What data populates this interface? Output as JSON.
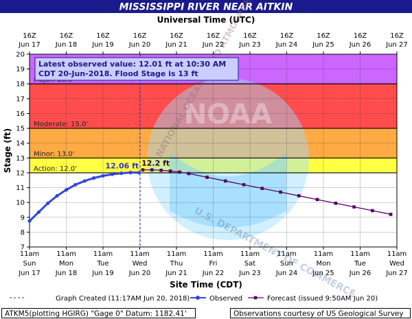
{
  "chart_data": {
    "type": "line",
    "title": "MISSISSIPPI RIVER NEAR AITKIN",
    "top_axis_title": "Universal Time (UTC)",
    "xlabel": "Site Time (CDT)",
    "ylabel": "Stage (ft)",
    "ylim": [
      7,
      20
    ],
    "yticks": [
      7,
      8,
      9,
      10,
      11,
      12,
      13,
      14,
      15,
      16,
      17,
      18,
      19,
      20
    ],
    "x_range": [
      "2018-06-17 11:00",
      "2018-06-27 11:00"
    ],
    "top_ticks": [
      {
        "time": "16Z",
        "date": "Jun 17"
      },
      {
        "time": "16Z",
        "date": "Jun 18"
      },
      {
        "time": "16Z",
        "date": "Jun 19"
      },
      {
        "time": "16Z",
        "date": "Jun 20"
      },
      {
        "time": "16Z",
        "date": "Jun 21"
      },
      {
        "time": "16Z",
        "date": "Jun 22"
      },
      {
        "time": "16Z",
        "date": "Jun 23"
      },
      {
        "time": "16Z",
        "date": "Jun 24"
      },
      {
        "time": "16Z",
        "date": "Jun 25"
      },
      {
        "time": "16Z",
        "date": "Jun 26"
      },
      {
        "time": "16Z",
        "date": "Jun 27"
      }
    ],
    "bottom_ticks": [
      {
        "time": "11am",
        "day": "Sun",
        "date": "Jun 17"
      },
      {
        "time": "11am",
        "day": "Mon",
        "date": "Jun 18"
      },
      {
        "time": "11am",
        "day": "Tue",
        "date": "Jun 19"
      },
      {
        "time": "11am",
        "day": "Wed",
        "date": "Jun 20"
      },
      {
        "time": "11am",
        "day": "Thu",
        "date": "Jun 21"
      },
      {
        "time": "11am",
        "day": "Fri",
        "date": "Jun 22"
      },
      {
        "time": "11am",
        "day": "Sat",
        "date": "Jun 23"
      },
      {
        "time": "11am",
        "day": "Sun",
        "date": "Jun 24"
      },
      {
        "time": "11am",
        "day": "Mon",
        "date": "Jun 25"
      },
      {
        "time": "11am",
        "day": "Tue",
        "date": "Jun 26"
      },
      {
        "time": "11am",
        "day": "Wed",
        "date": "Jun 27"
      }
    ],
    "flood_categories": [
      {
        "label": "Major: 18.0'",
        "from": 18.0,
        "to": 20.0,
        "color": "#cc66ff"
      },
      {
        "label": "",
        "from": 15.0,
        "to": 18.0,
        "color": "#ff4d4d"
      },
      {
        "label": "Moderate: 15.0'",
        "from": 15.0,
        "to": 15.0,
        "color": "#ff4d4d"
      },
      {
        "label": "Minor: 13.0'",
        "from": 13.0,
        "to": 15.0,
        "color": "#ffaa44"
      },
      {
        "label": "Action: 12.0'",
        "from": 12.0,
        "to": 13.0,
        "color": "#ffff44"
      }
    ],
    "series": [
      {
        "name": "Observed",
        "color": "#3344dd",
        "style": "line-dots",
        "x": [
          "2018-06-17 11:00",
          "2018-06-17 17:00",
          "2018-06-17 23:00",
          "2018-06-18 05:00",
          "2018-06-18 11:00",
          "2018-06-18 17:00",
          "2018-06-18 23:00",
          "2018-06-19 05:00",
          "2018-06-19 11:00",
          "2018-06-19 17:00",
          "2018-06-19 23:00",
          "2018-06-20 05:00",
          "2018-06-20 10:30"
        ],
        "values": [
          8.75,
          9.35,
          9.95,
          10.45,
          10.85,
          11.2,
          11.45,
          11.65,
          11.8,
          11.9,
          11.97,
          12.02,
          12.01
        ]
      },
      {
        "name": "Forecast",
        "color": "#550066",
        "style": "line-squares",
        "x": [
          "2018-06-20 13:00",
          "2018-06-20 19:00",
          "2018-06-21 01:00",
          "2018-06-21 07:00",
          "2018-06-21 13:00",
          "2018-06-21 19:00",
          "2018-06-22 07:00",
          "2018-06-22 19:00",
          "2018-06-23 07:00",
          "2018-06-23 19:00",
          "2018-06-24 07:00",
          "2018-06-24 19:00",
          "2018-06-25 07:00",
          "2018-06-25 19:00",
          "2018-06-26 07:00",
          "2018-06-26 19:00",
          "2018-06-27 07:00"
        ],
        "values": [
          12.2,
          12.2,
          12.17,
          12.12,
          12.05,
          11.95,
          11.7,
          11.45,
          11.2,
          10.95,
          10.7,
          10.45,
          10.2,
          9.95,
          9.7,
          9.45,
          9.2
        ]
      }
    ],
    "annotations": {
      "obs_label": "12.06 ft",
      "fc_label": "12.2 ft",
      "infobox_line1": "Latest observed value: 12.01 ft at 10:30 AM",
      "infobox_line2": "CDT 20-Jun-2018.  Flood Stage is 13 ft",
      "graph_created_time": "2018-06-20 11:17"
    },
    "legend": {
      "placement": "bottom",
      "items": [
        "Graph Created (11:17AM Jun 20, 2018)",
        "Observed",
        "Forecast (issued 9:50AM Jun 20)"
      ]
    },
    "footer": {
      "left": "ATKM5(plotting HGIRG) \"Gage 0\" Datum: 1182.41'",
      "right": "Observations courtesy of US Geological Survey"
    },
    "colors": {
      "title_bg": "#1a1a8c",
      "grid": "#333333",
      "observed": "#3344dd",
      "forecast": "#550066",
      "infobox_bg": "#ccccff",
      "infobox_border": "#3333aa",
      "watermark": "#99ddff"
    },
    "watermark": {
      "text_top": "NATIONAL OCEANIC AND ATMOSPHERIC ADMINISTRATION",
      "text_center": "NOAA",
      "text_bottom": "U.S. DEPARTMENT OF COMMERCE"
    },
    "grid": true
  }
}
